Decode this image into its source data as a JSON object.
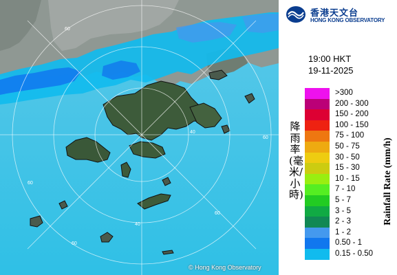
{
  "header": {
    "org_name_zh": "香港天文台",
    "org_name_en": "HONG KONG OBSERVATORY"
  },
  "timestamp": {
    "time": "19:00 HKT",
    "date": "19-11-2025"
  },
  "legend": {
    "title_zh": "降雨率(毫米/小時)",
    "title_en": "Rainfall Rate (mm/h)",
    "items": [
      {
        "range": ">300",
        "color": "#ee11ee"
      },
      {
        "range": "200 - 300",
        "color": "#bb0077"
      },
      {
        "range": "150 - 200",
        "color": "#dd0033"
      },
      {
        "range": "100 - 150",
        "color": "#ee2211"
      },
      {
        "range": "75 - 100",
        "color": "#ee7711"
      },
      {
        "range": "50 - 75",
        "color": "#eeaa11"
      },
      {
        "range": "30 - 50",
        "color": "#eecc11"
      },
      {
        "range": "15 - 30",
        "color": "#cccc11"
      },
      {
        "range": "10 - 15",
        "color": "#99ee11"
      },
      {
        "range": "7 - 10",
        "color": "#55ee22"
      },
      {
        "range": "5 - 7",
        "color": "#22cc22"
      },
      {
        "range": "3 - 5",
        "color": "#11aa44"
      },
      {
        "range": "2 - 3",
        "color": "#118855"
      },
      {
        "range": "1 - 2",
        "color": "#4499ee"
      },
      {
        "range": "0.50 - 1",
        "color": "#1177ee"
      },
      {
        "range": "0.15 - 0.50",
        "color": "#11bbee"
      }
    ]
  },
  "map": {
    "copyright": "© Hong Kong Observatory",
    "range_ring_labels": [
      "60",
      "60",
      "60",
      "40",
      "40",
      "60",
      "60"
    ]
  }
}
